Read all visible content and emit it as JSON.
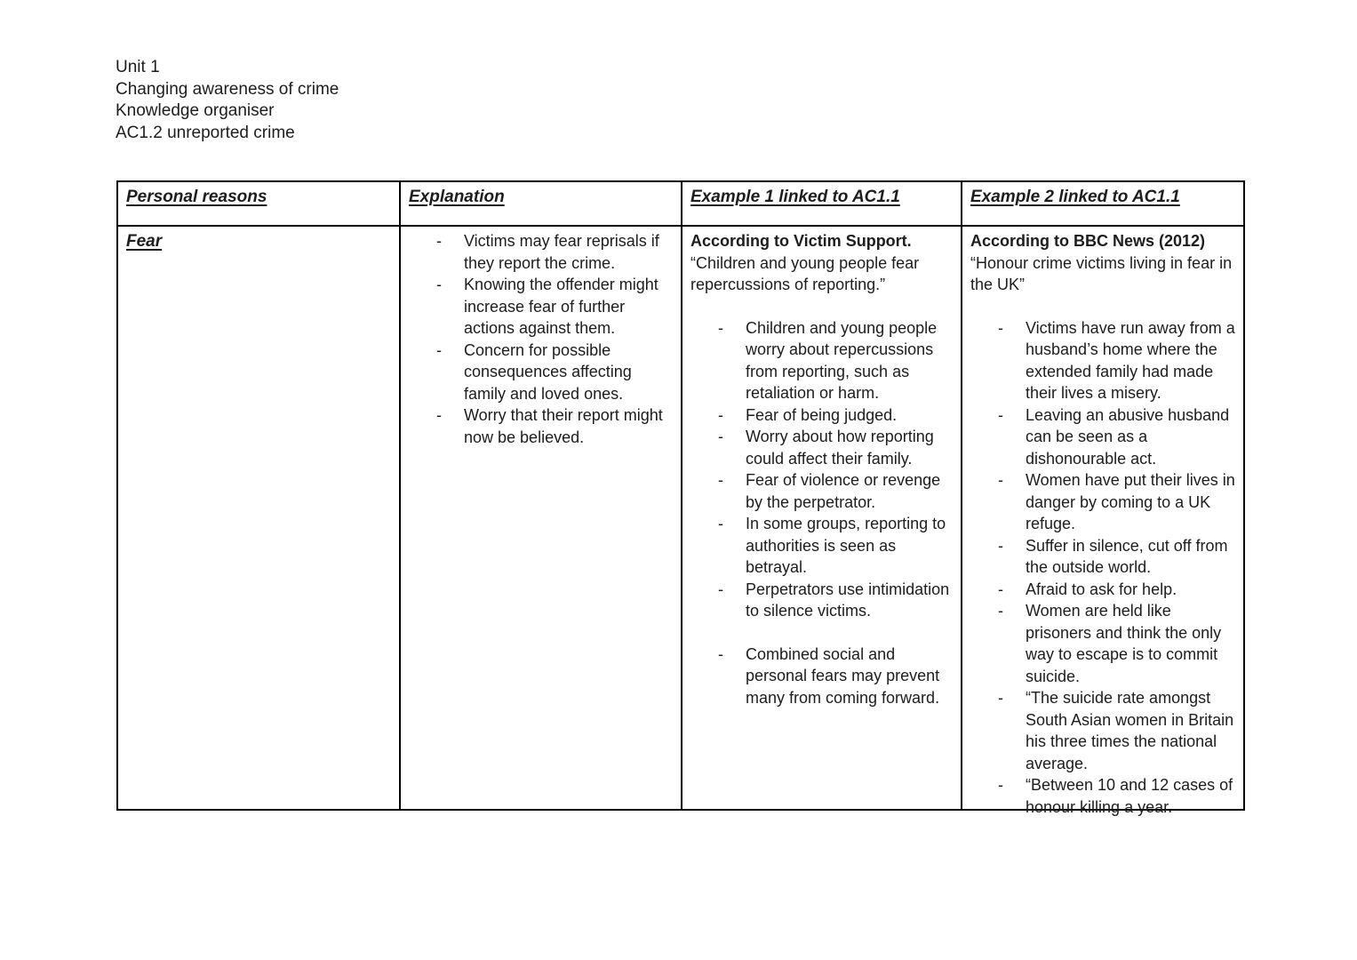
{
  "header": {
    "lines": [
      "Unit 1",
      "Changing awareness of crime",
      "Knowledge organiser",
      "AC1.2 unreported crime"
    ]
  },
  "table": {
    "headers": [
      "Personal reasons",
      "Explanation",
      "Example 1 linked to AC1.1",
      "Example 2 linked to AC1.1"
    ],
    "row": {
      "personal_reason": "Fear",
      "explanation_bullets": [
        "Victims may fear reprisals if they report the crime.",
        "Knowing the offender might increase fear of further actions against them.",
        "Concern for possible consequences affecting family and loved ones.",
        "Worry that their report might now be believed."
      ],
      "example1": {
        "source": "According to Victim Support.",
        "quote": "“Children and young people fear repercussions of reporting.”",
        "bullets": [
          "Children and young people worry about repercussions from reporting, such as retaliation or harm.",
          "Fear of being judged.",
          "Worry about how reporting could affect their family.",
          "Fear of violence or revenge by the perpetrator.",
          "In some groups, reporting to authorities is seen as betrayal.",
          "Perpetrators use intimidation to silence victims."
        ],
        "bullets_continued": [
          "Combined social and personal fears may prevent many from coming forward."
        ]
      },
      "example2": {
        "source": "According to BBC News (2012)",
        "quote": "“Honour crime victims living in fear in the UK”",
        "bullets": [
          "Victims have run away from a husband’s home where the extended family had made their lives a misery.",
          "Leaving an abusive husband can be seen as a dishonourable act.",
          "Women have put their lives in danger by coming to a UK refuge.",
          "Suffer in silence, cut off from the outside world.",
          "Afraid to ask for help.",
          "Women are held like prisoners and think the only way to escape is to commit suicide.",
          "“The suicide rate amongst South Asian women in Britain his three times the national average.",
          "“Between 10 and 12 cases of honour killing a year."
        ]
      }
    }
  }
}
